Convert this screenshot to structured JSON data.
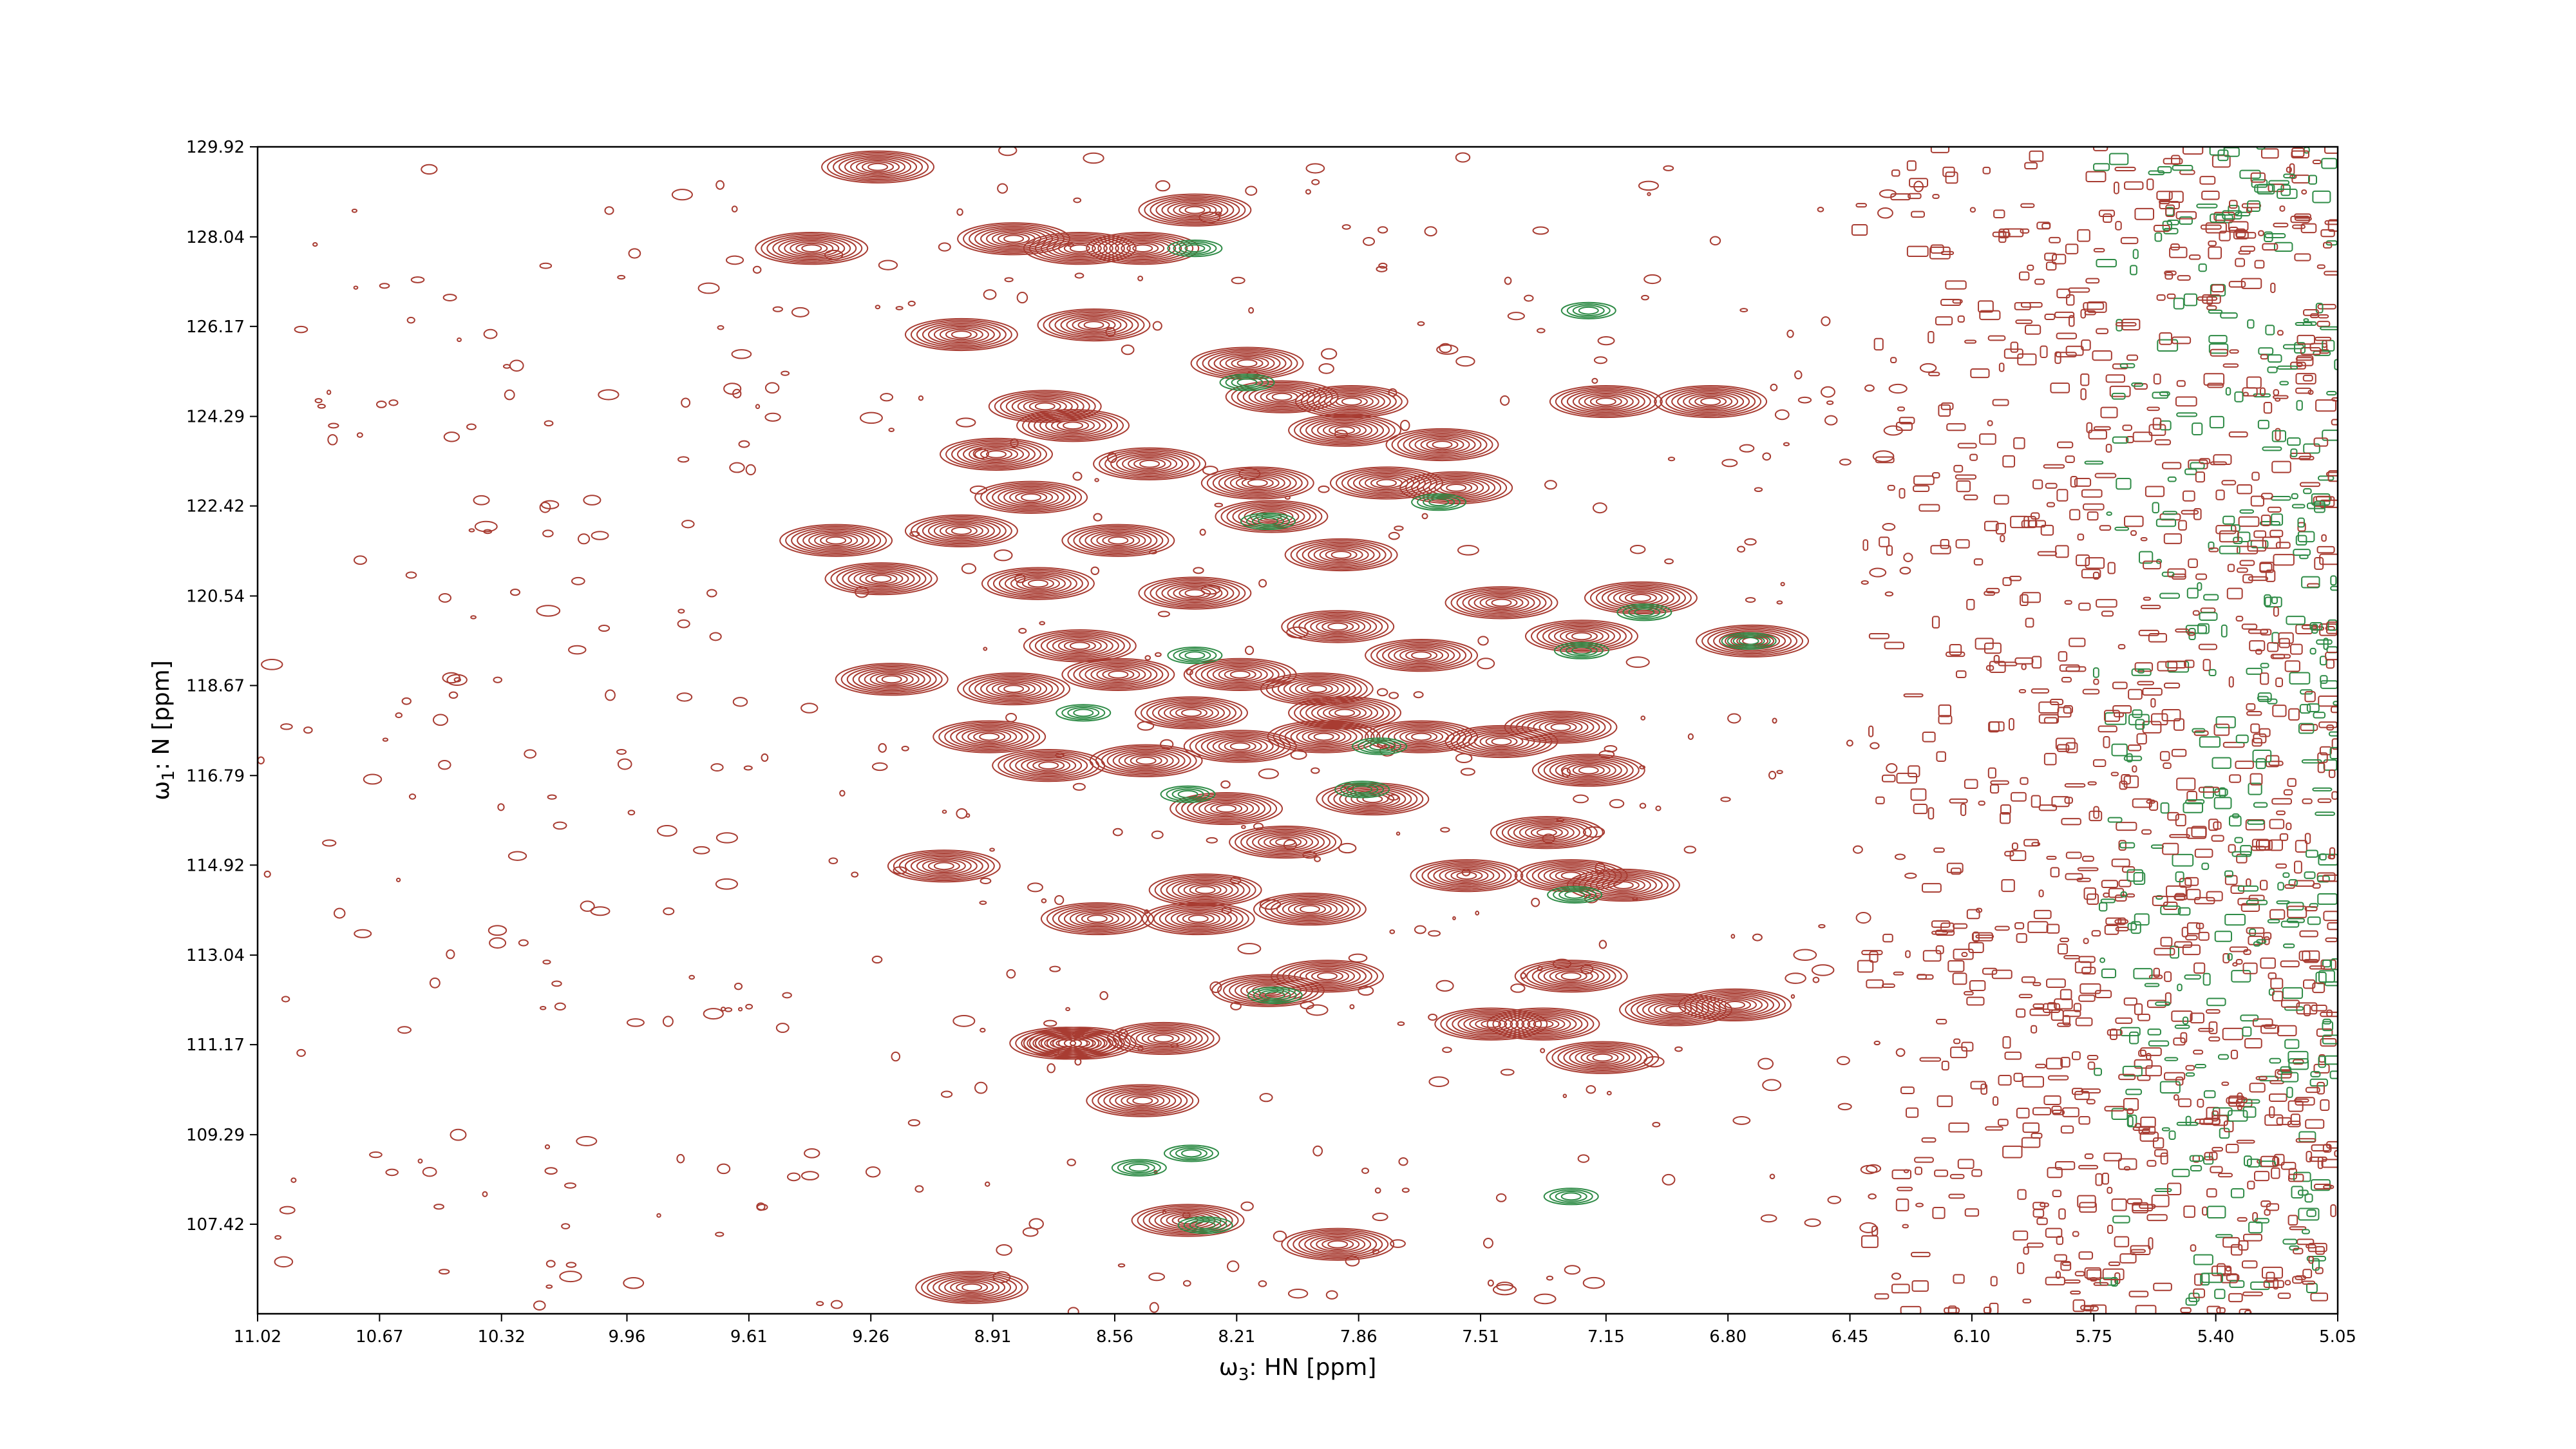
{
  "chart_data": {
    "type": "contour",
    "title": "",
    "xlabel_prefix": "ω",
    "xlabel_sub": "3",
    "xlabel_suffix": ": HN [ppm]",
    "ylabel_prefix": "ω",
    "ylabel_sub": "1",
    "ylabel_suffix": ": N [ppm]",
    "xlim": [
      11.02,
      5.05
    ],
    "ylim": [
      129.92,
      105.55
    ],
    "x_inverted": true,
    "y_inverted": true,
    "x_ticks": [
      "11.02",
      "10.67",
      "10.32",
      "9.96",
      "9.61",
      "9.26",
      "8.91",
      "8.56",
      "8.21",
      "7.86",
      "7.51",
      "7.15",
      "6.80",
      "6.45",
      "6.10",
      "5.75",
      "5.40",
      "5.05"
    ],
    "y_ticks": [
      "107.42",
      "109.29",
      "111.17",
      "113.04",
      "114.92",
      "116.79",
      "118.67",
      "120.54",
      "122.42",
      "124.29",
      "126.17",
      "128.04",
      "129.92"
    ],
    "grid": false,
    "colors": {
      "positive": "#a83c32",
      "negative": "#2e8b46"
    },
    "series": [
      {
        "sign": "positive",
        "peaks": [
          {
            "x": 8.97,
            "y": 106.1
          },
          {
            "x": 7.92,
            "y": 107.0
          },
          {
            "x": 8.35,
            "y": 107.5
          },
          {
            "x": 8.48,
            "y": 110.0
          },
          {
            "x": 8.66,
            "y": 111.2
          },
          {
            "x": 8.42,
            "y": 111.3
          },
          {
            "x": 8.7,
            "y": 111.2
          },
          {
            "x": 7.16,
            "y": 110.9
          },
          {
            "x": 7.48,
            "y": 111.6
          },
          {
            "x": 8.12,
            "y": 112.3
          },
          {
            "x": 7.33,
            "y": 111.6
          },
          {
            "x": 6.95,
            "y": 111.9
          },
          {
            "x": 7.95,
            "y": 112.6
          },
          {
            "x": 6.78,
            "y": 112.0
          },
          {
            "x": 7.25,
            "y": 112.6
          },
          {
            "x": 8.61,
            "y": 113.8
          },
          {
            "x": 8.32,
            "y": 113.8
          },
          {
            "x": 8.0,
            "y": 114.0
          },
          {
            "x": 8.3,
            "y": 114.4
          },
          {
            "x": 9.05,
            "y": 114.9
          },
          {
            "x": 7.25,
            "y": 114.7
          },
          {
            "x": 7.1,
            "y": 114.5
          },
          {
            "x": 7.55,
            "y": 114.7
          },
          {
            "x": 8.07,
            "y": 115.4
          },
          {
            "x": 7.32,
            "y": 115.6
          },
          {
            "x": 8.24,
            "y": 116.1
          },
          {
            "x": 7.82,
            "y": 116.3
          },
          {
            "x": 7.2,
            "y": 116.9
          },
          {
            "x": 8.75,
            "y": 117.0
          },
          {
            "x": 8.2,
            "y": 117.4
          },
          {
            "x": 8.47,
            "y": 117.1
          },
          {
            "x": 7.96,
            "y": 117.6
          },
          {
            "x": 7.68,
            "y": 117.6
          },
          {
            "x": 7.45,
            "y": 117.5
          },
          {
            "x": 7.28,
            "y": 117.8
          },
          {
            "x": 8.92,
            "y": 117.6
          },
          {
            "x": 8.34,
            "y": 118.1
          },
          {
            "x": 7.9,
            "y": 118.1
          },
          {
            "x": 9.2,
            "y": 118.8
          },
          {
            "x": 8.85,
            "y": 118.6
          },
          {
            "x": 8.55,
            "y": 118.9
          },
          {
            "x": 8.2,
            "y": 118.9
          },
          {
            "x": 7.98,
            "y": 118.6
          },
          {
            "x": 7.68,
            "y": 119.3
          },
          {
            "x": 7.92,
            "y": 119.9
          },
          {
            "x": 7.22,
            "y": 119.7
          },
          {
            "x": 6.73,
            "y": 119.6
          },
          {
            "x": 8.66,
            "y": 119.5
          },
          {
            "x": 7.05,
            "y": 120.5
          },
          {
            "x": 7.45,
            "y": 120.4
          },
          {
            "x": 9.23,
            "y": 120.9
          },
          {
            "x": 8.78,
            "y": 120.8
          },
          {
            "x": 8.33,
            "y": 120.6
          },
          {
            "x": 7.91,
            "y": 121.4
          },
          {
            "x": 9.36,
            "y": 121.7
          },
          {
            "x": 9.0,
            "y": 121.9
          },
          {
            "x": 8.55,
            "y": 121.7
          },
          {
            "x": 8.11,
            "y": 122.2
          },
          {
            "x": 8.8,
            "y": 122.6
          },
          {
            "x": 8.15,
            "y": 122.9
          },
          {
            "x": 7.78,
            "y": 122.9
          },
          {
            "x": 7.58,
            "y": 122.8
          },
          {
            "x": 8.9,
            "y": 123.5
          },
          {
            "x": 8.46,
            "y": 123.3
          },
          {
            "x": 7.62,
            "y": 123.7
          },
          {
            "x": 7.9,
            "y": 124.0
          },
          {
            "x": 8.68,
            "y": 124.1
          },
          {
            "x": 8.76,
            "y": 124.5
          },
          {
            "x": 8.08,
            "y": 124.7
          },
          {
            "x": 7.88,
            "y": 124.6
          },
          {
            "x": 7.15,
            "y": 124.6
          },
          {
            "x": 6.85,
            "y": 124.6
          },
          {
            "x": 8.18,
            "y": 125.4
          },
          {
            "x": 9.0,
            "y": 126.0
          },
          {
            "x": 8.62,
            "y": 126.2
          },
          {
            "x": 9.43,
            "y": 127.8
          },
          {
            "x": 8.66,
            "y": 127.8
          },
          {
            "x": 8.48,
            "y": 127.8
          },
          {
            "x": 8.85,
            "y": 128.0
          },
          {
            "x": 9.24,
            "y": 129.5
          },
          {
            "x": 8.33,
            "y": 128.6
          }
        ]
      },
      {
        "sign": "negative",
        "peaks": [
          {
            "x": 7.25,
            "y": 108.0
          },
          {
            "x": 8.3,
            "y": 107.4
          },
          {
            "x": 8.34,
            "y": 108.9
          },
          {
            "x": 8.49,
            "y": 108.6
          },
          {
            "x": 8.1,
            "y": 112.2
          },
          {
            "x": 7.24,
            "y": 114.3
          },
          {
            "x": 8.35,
            "y": 116.4
          },
          {
            "x": 7.85,
            "y": 116.5
          },
          {
            "x": 7.8,
            "y": 117.4
          },
          {
            "x": 8.65,
            "y": 118.1
          },
          {
            "x": 8.33,
            "y": 119.3
          },
          {
            "x": 7.22,
            "y": 119.4
          },
          {
            "x": 6.74,
            "y": 119.6
          },
          {
            "x": 7.04,
            "y": 120.2
          },
          {
            "x": 8.12,
            "y": 122.1
          },
          {
            "x": 7.63,
            "y": 122.5
          },
          {
            "x": 8.18,
            "y": 125.0
          },
          {
            "x": 8.33,
            "y": 127.8
          },
          {
            "x": 7.2,
            "y": 126.5
          }
        ]
      }
    ],
    "noise_band_ppm": [
      5.75,
      5.05
    ]
  }
}
